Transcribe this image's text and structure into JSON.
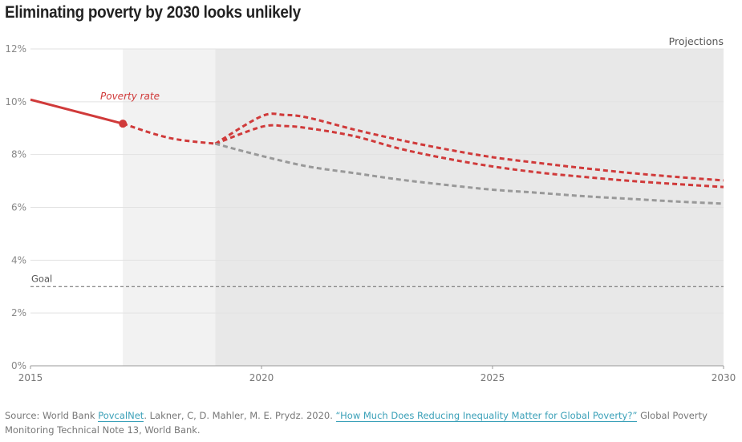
{
  "chart_data": {
    "type": "line",
    "title": "Eliminating poverty by 2030 looks unlikely",
    "xlim": [
      2015,
      2030
    ],
    "ylim": [
      0,
      12
    ],
    "x_ticks": [
      "2015",
      "2020",
      "2025",
      "2030"
    ],
    "y_ticks": [
      "0%",
      "2%",
      "4%",
      "6%",
      "8%",
      "10%",
      "12%"
    ],
    "grid": true,
    "shaded_regions": [
      {
        "from": 2017,
        "to": 2019,
        "color": "#f2f2f2"
      },
      {
        "from": 2019,
        "to": 2030,
        "color": "#e8e8e8",
        "label": "Projections"
      }
    ],
    "goal": {
      "label": "Goal",
      "value": 3
    },
    "series": [
      {
        "name": "Poverty rate",
        "style": "solid",
        "color": "#d03a3a",
        "x": [
          2015,
          2017
        ],
        "y": [
          10.08,
          9.17
        ]
      },
      {
        "style": "dashed",
        "color": "#d03a3a",
        "x": [
          2017,
          2018,
          2019
        ],
        "y": [
          9.17,
          8.63,
          8.41
        ]
      },
      {
        "style": "dashed",
        "color": "#d03a3a",
        "x": [
          2019,
          2020,
          2020.5,
          2021,
          2022,
          2023,
          2024,
          2025,
          2026,
          2027,
          2028,
          2029,
          2030
        ],
        "y": [
          8.41,
          9.45,
          9.5,
          9.4,
          8.95,
          8.55,
          8.2,
          7.9,
          7.68,
          7.48,
          7.3,
          7.15,
          7.02
        ]
      },
      {
        "style": "dashed",
        "color": "#d03a3a",
        "x": [
          2019,
          2020,
          2020.5,
          2021,
          2022,
          2023,
          2024,
          2025,
          2026,
          2027,
          2028,
          2029,
          2030
        ],
        "y": [
          8.41,
          9.05,
          9.08,
          9.0,
          8.7,
          8.22,
          7.85,
          7.55,
          7.32,
          7.15,
          7.0,
          6.88,
          6.77
        ]
      },
      {
        "style": "dashed",
        "color": "#999999",
        "x": [
          2019,
          2020,
          2021,
          2022,
          2023,
          2024,
          2025,
          2026,
          2027,
          2028,
          2029,
          2030
        ],
        "y": [
          8.41,
          7.95,
          7.55,
          7.3,
          7.05,
          6.85,
          6.67,
          6.55,
          6.42,
          6.32,
          6.22,
          6.14
        ]
      }
    ]
  },
  "source": {
    "prefix": "Source: World Bank ",
    "link1": "PovcalNet",
    "middle": ". Lakner, C, D. Mahler, M. E. Prydz. 2020. ",
    "link2": "“How Much Does Reducing Inequality Matter for Global Poverty?”",
    "suffix": " Global Poverty Monitoring Technical Note 13, World Bank."
  }
}
